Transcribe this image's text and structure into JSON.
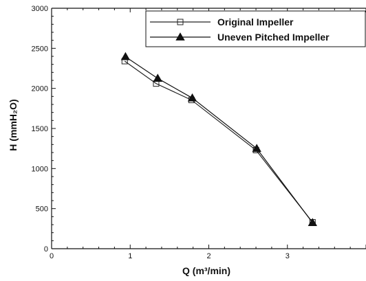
{
  "chart_data": {
    "type": "line",
    "xlabel": "Q (m³/min)",
    "ylabel": "H (mmH₂O)",
    "xlim": [
      0,
      4
    ],
    "ylim": [
      0,
      3000
    ],
    "x_ticks": [
      "0",
      "1",
      "2",
      "3"
    ],
    "y_ticks": [
      "0",
      "500",
      "1000",
      "1500",
      "2000",
      "2500",
      "3000"
    ],
    "legend_position": "top-right",
    "grid": false,
    "series": [
      {
        "name": "Original Impeller",
        "marker": "open-square",
        "color": "#222222",
        "x": [
          0.93,
          1.33,
          1.78,
          2.6,
          3.32
        ],
        "y": [
          2340,
          2060,
          1855,
          1230,
          330
        ]
      },
      {
        "name": "Uneven Pitched Impeller",
        "marker": "filled-triangle",
        "color": "#111111",
        "x": [
          0.94,
          1.35,
          1.79,
          2.61,
          3.32
        ],
        "y": [
          2395,
          2125,
          1880,
          1250,
          325
        ]
      }
    ]
  }
}
